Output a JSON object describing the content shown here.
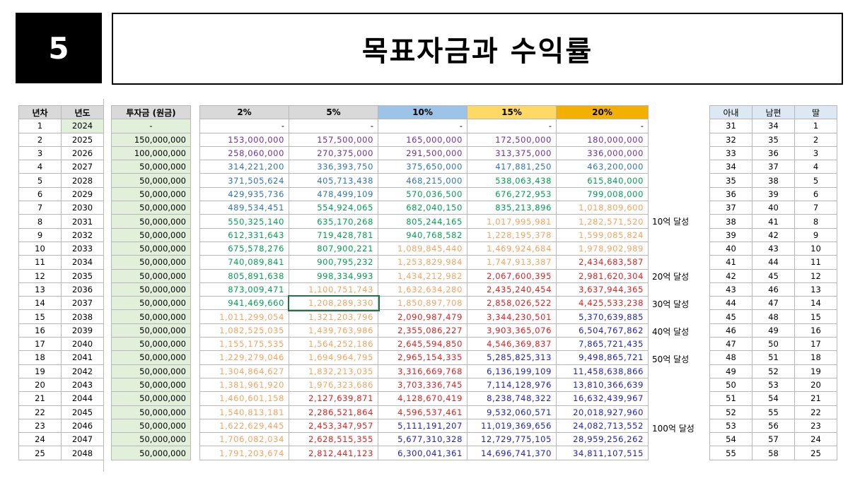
{
  "header": {
    "badge": "5",
    "title": "목표자금과 수익률"
  },
  "left_headers": [
    "년차",
    "년도"
  ],
  "investment_header": "투자금 (원금)",
  "rate_headers": [
    "2%",
    "5%",
    "10%",
    "15%",
    "20%"
  ],
  "rate_header_colors": [
    "#d9d9d9",
    "#d9d9d9",
    "#9dc3e6",
    "#ffd966",
    "#f4b000"
  ],
  "family_headers": [
    "아내",
    "남편",
    "딸"
  ],
  "value_colors": {
    "purple": "#7030a0",
    "blue": "#2f75b5",
    "green": "#00a050",
    "orange": "#f4a460",
    "red": "#e02020",
    "navy": "#2020c0"
  },
  "rows": [
    {
      "n": "1",
      "year": "2024",
      "inv": "-",
      "vals": [
        "-",
        "-",
        "-",
        "-",
        "-"
      ],
      "colors": [
        "k",
        "k",
        "k",
        "k",
        "k"
      ],
      "family": [
        "31",
        "34",
        "1"
      ]
    },
    {
      "n": "2",
      "year": "2025",
      "inv": "150,000,000",
      "vals": [
        "153,000,000",
        "157,500,000",
        "165,000,000",
        "172,500,000",
        "180,000,000"
      ],
      "colors": [
        "purple",
        "purple",
        "purple",
        "purple",
        "purple"
      ],
      "family": [
        "32",
        "35",
        "2"
      ]
    },
    {
      "n": "3",
      "year": "2026",
      "inv": "100,000,000",
      "vals": [
        "258,060,000",
        "270,375,000",
        "291,500,000",
        "313,375,000",
        "336,000,000"
      ],
      "colors": [
        "purple",
        "purple",
        "purple",
        "purple",
        "purple"
      ],
      "family": [
        "33",
        "36",
        "3"
      ]
    },
    {
      "n": "4",
      "year": "2027",
      "inv": "50,000,000",
      "vals": [
        "314,221,200",
        "336,393,750",
        "375,650,000",
        "417,881,250",
        "463,200,000"
      ],
      "colors": [
        "blue",
        "blue",
        "blue",
        "blue",
        "blue"
      ],
      "family": [
        "34",
        "37",
        "4"
      ]
    },
    {
      "n": "5",
      "year": "2028",
      "inv": "50,000,000",
      "vals": [
        "371,505,624",
        "405,713,438",
        "468,215,000",
        "538,063,438",
        "615,840,000"
      ],
      "colors": [
        "blue",
        "blue",
        "blue",
        "green",
        "green"
      ],
      "family": [
        "35",
        "38",
        "5"
      ]
    },
    {
      "n": "6",
      "year": "2029",
      "inv": "50,000,000",
      "vals": [
        "429,935,736",
        "478,499,109",
        "570,036,500",
        "676,272,953",
        "799,008,000"
      ],
      "colors": [
        "blue",
        "blue",
        "green",
        "green",
        "green"
      ],
      "family": [
        "36",
        "39",
        "6"
      ]
    },
    {
      "n": "7",
      "year": "2030",
      "inv": "50,000,000",
      "vals": [
        "489,534,451",
        "554,924,065",
        "682,040,150",
        "835,213,896",
        "1,018,809,600"
      ],
      "colors": [
        "blue",
        "green",
        "green",
        "green",
        "orange"
      ],
      "family": [
        "37",
        "40",
        "7"
      ]
    },
    {
      "n": "8",
      "year": "2031",
      "inv": "50,000,000",
      "vals": [
        "550,325,140",
        "635,170,268",
        "805,244,165",
        "1,017,995,981",
        "1,282,571,520"
      ],
      "colors": [
        "green",
        "green",
        "green",
        "orange",
        "orange"
      ],
      "family": [
        "38",
        "41",
        "8"
      ]
    },
    {
      "n": "9",
      "year": "2032",
      "inv": "50,000,000",
      "vals": [
        "612,331,643",
        "719,428,781",
        "940,768,582",
        "1,228,195,378",
        "1,599,085,824"
      ],
      "colors": [
        "green",
        "green",
        "green",
        "orange",
        "orange"
      ],
      "family": [
        "39",
        "42",
        "9"
      ]
    },
    {
      "n": "10",
      "year": "2033",
      "inv": "50,000,000",
      "vals": [
        "675,578,276",
        "807,900,221",
        "1,089,845,440",
        "1,469,924,684",
        "1,978,902,989"
      ],
      "colors": [
        "green",
        "green",
        "orange",
        "orange",
        "orange"
      ],
      "family": [
        "40",
        "43",
        "10"
      ]
    },
    {
      "n": "11",
      "year": "2034",
      "inv": "50,000,000",
      "vals": [
        "740,089,841",
        "900,795,232",
        "1,253,829,984",
        "1,747,913,387",
        "2,434,683,587"
      ],
      "colors": [
        "green",
        "green",
        "orange",
        "orange",
        "red"
      ],
      "family": [
        "41",
        "44",
        "11"
      ]
    },
    {
      "n": "12",
      "year": "2035",
      "inv": "50,000,000",
      "vals": [
        "805,891,638",
        "998,334,993",
        "1,434,212,982",
        "2,067,600,395",
        "2,981,620,304"
      ],
      "colors": [
        "green",
        "green",
        "orange",
        "red",
        "red"
      ],
      "family": [
        "42",
        "45",
        "12"
      ]
    },
    {
      "n": "13",
      "year": "2036",
      "inv": "50,000,000",
      "vals": [
        "873,009,471",
        "1,100,751,743",
        "1,632,634,280",
        "2,435,240,454",
        "3,637,944,365"
      ],
      "colors": [
        "green",
        "orange",
        "orange",
        "red",
        "red"
      ],
      "family": [
        "43",
        "46",
        "13"
      ]
    },
    {
      "n": "14",
      "year": "2037",
      "inv": "50,000,000",
      "vals": [
        "941,469,660",
        "1,208,289,330",
        "1,850,897,708",
        "2,858,026,522",
        "4,425,533,238"
      ],
      "colors": [
        "green",
        "orange",
        "orange",
        "red",
        "red"
      ],
      "family": [
        "44",
        "47",
        "14"
      ]
    },
    {
      "n": "15",
      "year": "2038",
      "inv": "50,000,000",
      "vals": [
        "1,011,299,054",
        "1,321,203,796",
        "2,090,987,479",
        "3,344,230,501",
        "5,370,639,885"
      ],
      "colors": [
        "orange",
        "orange",
        "red",
        "red",
        "navy"
      ],
      "family": [
        "45",
        "48",
        "15"
      ]
    },
    {
      "n": "16",
      "year": "2039",
      "inv": "50,000,000",
      "vals": [
        "1,082,525,035",
        "1,439,763,986",
        "2,355,086,227",
        "3,903,365,076",
        "6,504,767,862"
      ],
      "colors": [
        "orange",
        "orange",
        "red",
        "red",
        "navy"
      ],
      "family": [
        "46",
        "49",
        "16"
      ]
    },
    {
      "n": "17",
      "year": "2040",
      "inv": "50,000,000",
      "vals": [
        "1,155,175,535",
        "1,564,252,186",
        "2,645,594,850",
        "4,546,369,837",
        "7,865,721,435"
      ],
      "colors": [
        "orange",
        "orange",
        "red",
        "red",
        "navy"
      ],
      "family": [
        "47",
        "50",
        "17"
      ]
    },
    {
      "n": "18",
      "year": "2041",
      "inv": "50,000,000",
      "vals": [
        "1,229,279,046",
        "1,694,964,795",
        "2,965,154,335",
        "5,285,825,313",
        "9,498,865,721"
      ],
      "colors": [
        "orange",
        "orange",
        "red",
        "navy",
        "navy"
      ],
      "family": [
        "48",
        "51",
        "18"
      ]
    },
    {
      "n": "19",
      "year": "2042",
      "inv": "50,000,000",
      "vals": [
        "1,304,864,627",
        "1,832,213,035",
        "3,316,669,768",
        "6,136,199,109",
        "11,458,638,866"
      ],
      "colors": [
        "orange",
        "orange",
        "red",
        "navy",
        "navy"
      ],
      "family": [
        "49",
        "52",
        "19"
      ]
    },
    {
      "n": "20",
      "year": "2043",
      "inv": "50,000,000",
      "vals": [
        "1,381,961,920",
        "1,976,323,686",
        "3,703,336,745",
        "7,114,128,976",
        "13,810,366,639"
      ],
      "colors": [
        "orange",
        "orange",
        "red",
        "navy",
        "navy"
      ],
      "family": [
        "50",
        "53",
        "20"
      ]
    },
    {
      "n": "21",
      "year": "2044",
      "inv": "50,000,000",
      "vals": [
        "1,460,601,158",
        "2,127,639,871",
        "4,128,670,419",
        "8,238,748,322",
        "16,632,439,967"
      ],
      "colors": [
        "orange",
        "red",
        "red",
        "navy",
        "navy"
      ],
      "family": [
        "51",
        "54",
        "21"
      ]
    },
    {
      "n": "22",
      "year": "2045",
      "inv": "50,000,000",
      "vals": [
        "1,540,813,181",
        "2,286,521,864",
        "4,596,537,461",
        "9,532,060,571",
        "20,018,927,960"
      ],
      "colors": [
        "orange",
        "red",
        "red",
        "navy",
        "navy"
      ],
      "family": [
        "52",
        "55",
        "22"
      ]
    },
    {
      "n": "23",
      "year": "2046",
      "inv": "50,000,000",
      "vals": [
        "1,622,629,445",
        "2,453,347,957",
        "5,111,191,207",
        "11,019,369,656",
        "24,082,713,552"
      ],
      "colors": [
        "orange",
        "red",
        "navy",
        "navy",
        "navy"
      ],
      "family": [
        "53",
        "56",
        "23"
      ]
    },
    {
      "n": "24",
      "year": "2047",
      "inv": "50,000,000",
      "vals": [
        "1,706,082,034",
        "2,628,515,355",
        "5,677,310,328",
        "12,729,775,105",
        "28,959,256,262"
      ],
      "colors": [
        "orange",
        "red",
        "navy",
        "navy",
        "navy"
      ],
      "family": [
        "54",
        "57",
        "24"
      ]
    },
    {
      "n": "25",
      "year": "2048",
      "inv": "50,000,000",
      "vals": [
        "1,791,203,674",
        "2,812,441,123",
        "6,300,041,361",
        "14,696,741,370",
        "34,811,107,515"
      ],
      "colors": [
        "orange",
        "red",
        "navy",
        "navy",
        "navy"
      ],
      "family": [
        "55",
        "58",
        "25"
      ]
    }
  ],
  "milestones": [
    {
      "label": "10억 달성",
      "row": 7
    },
    {
      "label": "20억 달성",
      "row": 11
    },
    {
      "label": "30억 달성",
      "row": 13
    },
    {
      "label": "40억 달성",
      "row": 15
    },
    {
      "label": "50억 달성",
      "row": 17
    },
    {
      "label": "100억 달성",
      "row": 22
    }
  ]
}
